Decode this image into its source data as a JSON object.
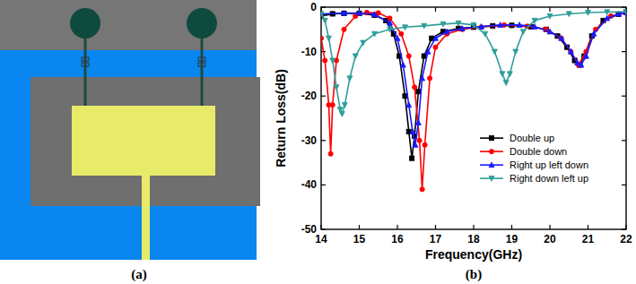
{
  "panel_labels": [
    "(a)",
    "(b)"
  ],
  "chart_data": {
    "type": "line",
    "x_label": "Frequency(GHz)",
    "y_label": "Return Loss(dB)",
    "xlim": [
      14,
      22
    ],
    "ylim": [
      -50,
      0
    ],
    "xticks": [
      14,
      15,
      16,
      17,
      18,
      19,
      20,
      21,
      22
    ],
    "yticks": [
      -50,
      -40,
      -30,
      -20,
      -10,
      0
    ],
    "grid": false,
    "legend": "right",
    "series": [
      {
        "name": "Double up",
        "color": "#000000",
        "marker": "square",
        "line_style": "solid",
        "x": [
          14,
          14.3,
          14.6,
          15,
          15.4,
          15.7,
          15.9,
          16.05,
          16.2,
          16.3,
          16.38,
          16.45,
          16.55,
          16.7,
          16.9,
          17.2,
          17.6,
          18,
          18.5,
          19,
          19.5,
          19.9,
          20.2,
          20.45,
          20.65,
          20.78,
          20.9,
          21.1,
          21.4,
          21.8,
          22
        ],
        "values": [
          -2,
          -1.5,
          -1.4,
          -1.4,
          -1.8,
          -3,
          -6,
          -11,
          -20,
          -28,
          -34,
          -29,
          -19,
          -11,
          -7,
          -5.5,
          -4.8,
          -4.5,
          -4.2,
          -4.1,
          -4.4,
          -5,
          -6.5,
          -9,
          -12,
          -13,
          -11,
          -6.5,
          -3,
          -1.6,
          -1.2
        ]
      },
      {
        "name": "Double down",
        "color": "#ff0000",
        "marker": "circle",
        "line_style": "solid",
        "x": [
          14,
          14.1,
          14.2,
          14.25,
          14.3,
          14.4,
          14.6,
          14.9,
          15.2,
          15.5,
          15.8,
          16.1,
          16.3,
          16.45,
          16.58,
          16.65,
          16.72,
          16.85,
          17,
          17.3,
          17.7,
          18.2,
          18.8,
          19.4,
          19.9,
          20.3,
          20.55,
          20.75,
          20.95,
          21.2,
          21.6,
          22
        ],
        "values": [
          -7,
          -12,
          -22,
          -33,
          -22,
          -12,
          -5,
          -2,
          -1.2,
          -1.3,
          -2.5,
          -6,
          -11,
          -18,
          -30,
          -41,
          -31,
          -16,
          -9,
          -6,
          -5,
          -4.5,
          -4,
          -4.3,
          -5,
          -7,
          -10,
          -13,
          -10,
          -5,
          -2,
          -1.2
        ]
      },
      {
        "name": "Right up left down",
        "color": "#1a1aff",
        "marker": "triangle",
        "line_style": "solid",
        "x": [
          14,
          14.6,
          15,
          15.4,
          15.8,
          16,
          16.15,
          16.3,
          16.4,
          16.47,
          16.55,
          16.65,
          16.8,
          17,
          17.3,
          17.7,
          18.2,
          18.7,
          19.2,
          19.6,
          20,
          20.3,
          20.55,
          20.72,
          20.82,
          20.95,
          21.15,
          21.5,
          21.8,
          22
        ],
        "values": [
          -1.5,
          -1.3,
          -1.3,
          -1.6,
          -3.5,
          -7,
          -13,
          -22,
          -28,
          -31,
          -26,
          -16,
          -10,
          -7,
          -5.5,
          -4.8,
          -4.4,
          -4,
          -4,
          -4.4,
          -5.5,
          -7,
          -10,
          -12.5,
          -13,
          -11,
          -6,
          -2.5,
          -1.5,
          -1.2
        ]
      },
      {
        "name": "Right down left up",
        "color": "#2e9e9a",
        "marker": "triangle-down",
        "line_style": "solid",
        "x": [
          14,
          14.1,
          14.2,
          14.3,
          14.4,
          14.5,
          14.55,
          14.62,
          14.75,
          14.9,
          15.1,
          15.4,
          15.8,
          16.2,
          16.7,
          17.2,
          17.6,
          18,
          18.3,
          18.55,
          18.75,
          18.85,
          18.95,
          19.1,
          19.3,
          19.6,
          20,
          20.5,
          21,
          21.5,
          22
        ],
        "values": [
          -1.5,
          -3,
          -7,
          -12,
          -18,
          -23,
          -24,
          -22,
          -16,
          -11,
          -8,
          -6,
          -5,
          -4.5,
          -4.2,
          -3.8,
          -3.6,
          -4,
          -6,
          -10,
          -15,
          -17,
          -15,
          -10,
          -5.5,
          -3,
          -2,
          -1.5,
          -1.2,
          -1.1,
          -1
        ]
      }
    ]
  }
}
